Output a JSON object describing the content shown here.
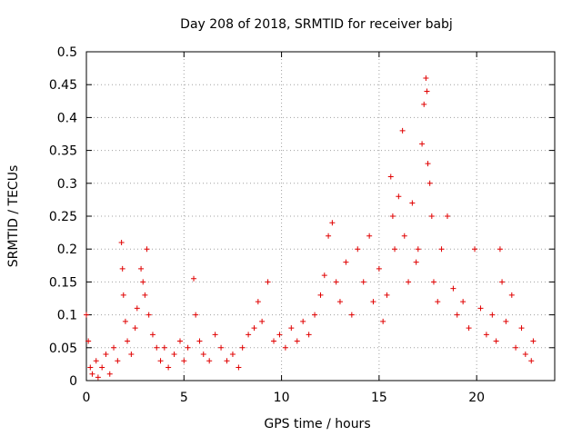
{
  "chart_data": {
    "type": "scatter",
    "title": "Day 208 of 2018, SRMTID for receiver babj",
    "xlabel": "GPS time / hours",
    "ylabel": "SRMTID / TECUs",
    "xlim": [
      0,
      24
    ],
    "ylim": [
      0,
      0.5
    ],
    "x_ticks": [
      0,
      5,
      10,
      15,
      20
    ],
    "x_tick_labels": [
      "0",
      "5",
      "10",
      "15",
      "20"
    ],
    "y_ticks": [
      0,
      0.05,
      0.1,
      0.15,
      0.2,
      0.25,
      0.3,
      0.35,
      0.4,
      0.45,
      0.5
    ],
    "y_tick_labels": [
      "0",
      "0.05",
      "0.1",
      "0.15",
      "0.2",
      "0.25",
      "0.3",
      "0.35",
      "0.4",
      "0.45",
      "0.5"
    ],
    "grid": true,
    "marker": "plus",
    "color": "#e00000",
    "series": [
      {
        "name": "SRMTID",
        "points": [
          [
            0.0,
            0.1
          ],
          [
            0.1,
            0.06
          ],
          [
            0.2,
            0.02
          ],
          [
            0.3,
            0.01
          ],
          [
            0.5,
            0.03
          ],
          [
            0.6,
            0.005
          ],
          [
            0.8,
            0.02
          ],
          [
            1.0,
            0.04
          ],
          [
            1.2,
            0.01
          ],
          [
            1.4,
            0.05
          ],
          [
            1.6,
            0.03
          ],
          [
            1.8,
            0.21
          ],
          [
            1.85,
            0.17
          ],
          [
            1.9,
            0.13
          ],
          [
            2.0,
            0.09
          ],
          [
            2.1,
            0.06
          ],
          [
            2.3,
            0.04
          ],
          [
            2.5,
            0.08
          ],
          [
            2.6,
            0.11
          ],
          [
            2.8,
            0.17
          ],
          [
            2.9,
            0.15
          ],
          [
            3.0,
            0.13
          ],
          [
            3.1,
            0.2
          ],
          [
            3.2,
            0.1
          ],
          [
            3.4,
            0.07
          ],
          [
            3.6,
            0.05
          ],
          [
            3.8,
            0.03
          ],
          [
            4.0,
            0.05
          ],
          [
            4.2,
            0.02
          ],
          [
            4.5,
            0.04
          ],
          [
            4.8,
            0.06
          ],
          [
            5.0,
            0.03
          ],
          [
            5.2,
            0.05
          ],
          [
            5.5,
            0.155
          ],
          [
            5.6,
            0.1
          ],
          [
            5.8,
            0.06
          ],
          [
            6.0,
            0.04
          ],
          [
            6.3,
            0.03
          ],
          [
            6.6,
            0.07
          ],
          [
            6.9,
            0.05
          ],
          [
            7.2,
            0.03
          ],
          [
            7.5,
            0.04
          ],
          [
            7.8,
            0.02
          ],
          [
            8.0,
            0.05
          ],
          [
            8.3,
            0.07
          ],
          [
            8.6,
            0.08
          ],
          [
            8.8,
            0.12
          ],
          [
            9.0,
            0.09
          ],
          [
            9.3,
            0.15
          ],
          [
            9.6,
            0.06
          ],
          [
            9.9,
            0.07
          ],
          [
            10.2,
            0.05
          ],
          [
            10.5,
            0.08
          ],
          [
            10.8,
            0.06
          ],
          [
            11.1,
            0.09
          ],
          [
            11.4,
            0.07
          ],
          [
            11.7,
            0.1
          ],
          [
            12.0,
            0.13
          ],
          [
            12.2,
            0.16
          ],
          [
            12.4,
            0.22
          ],
          [
            12.6,
            0.24
          ],
          [
            12.8,
            0.15
          ],
          [
            13.0,
            0.12
          ],
          [
            13.3,
            0.18
          ],
          [
            13.6,
            0.1
          ],
          [
            13.9,
            0.2
          ],
          [
            14.2,
            0.15
          ],
          [
            14.5,
            0.22
          ],
          [
            14.7,
            0.12
          ],
          [
            15.0,
            0.17
          ],
          [
            15.2,
            0.09
          ],
          [
            15.4,
            0.13
          ],
          [
            15.6,
            0.31
          ],
          [
            15.7,
            0.25
          ],
          [
            15.8,
            0.2
          ],
          [
            16.0,
            0.28
          ],
          [
            16.2,
            0.38
          ],
          [
            16.3,
            0.22
          ],
          [
            16.5,
            0.15
          ],
          [
            16.7,
            0.27
          ],
          [
            16.9,
            0.18
          ],
          [
            17.0,
            0.2
          ],
          [
            17.2,
            0.36
          ],
          [
            17.3,
            0.42
          ],
          [
            17.4,
            0.46
          ],
          [
            17.45,
            0.44
          ],
          [
            17.5,
            0.33
          ],
          [
            17.6,
            0.3
          ],
          [
            17.7,
            0.25
          ],
          [
            17.8,
            0.15
          ],
          [
            18.0,
            0.12
          ],
          [
            18.2,
            0.2
          ],
          [
            18.5,
            0.25
          ],
          [
            18.8,
            0.14
          ],
          [
            19.0,
            0.1
          ],
          [
            19.3,
            0.12
          ],
          [
            19.6,
            0.08
          ],
          [
            19.9,
            0.2
          ],
          [
            20.2,
            0.11
          ],
          [
            20.5,
            0.07
          ],
          [
            20.8,
            0.1
          ],
          [
            21.0,
            0.06
          ],
          [
            21.2,
            0.2
          ],
          [
            21.3,
            0.15
          ],
          [
            21.5,
            0.09
          ],
          [
            21.8,
            0.13
          ],
          [
            22.0,
            0.05
          ],
          [
            22.3,
            0.08
          ],
          [
            22.5,
            0.04
          ],
          [
            22.8,
            0.03
          ],
          [
            22.9,
            0.06
          ]
        ]
      }
    ]
  }
}
